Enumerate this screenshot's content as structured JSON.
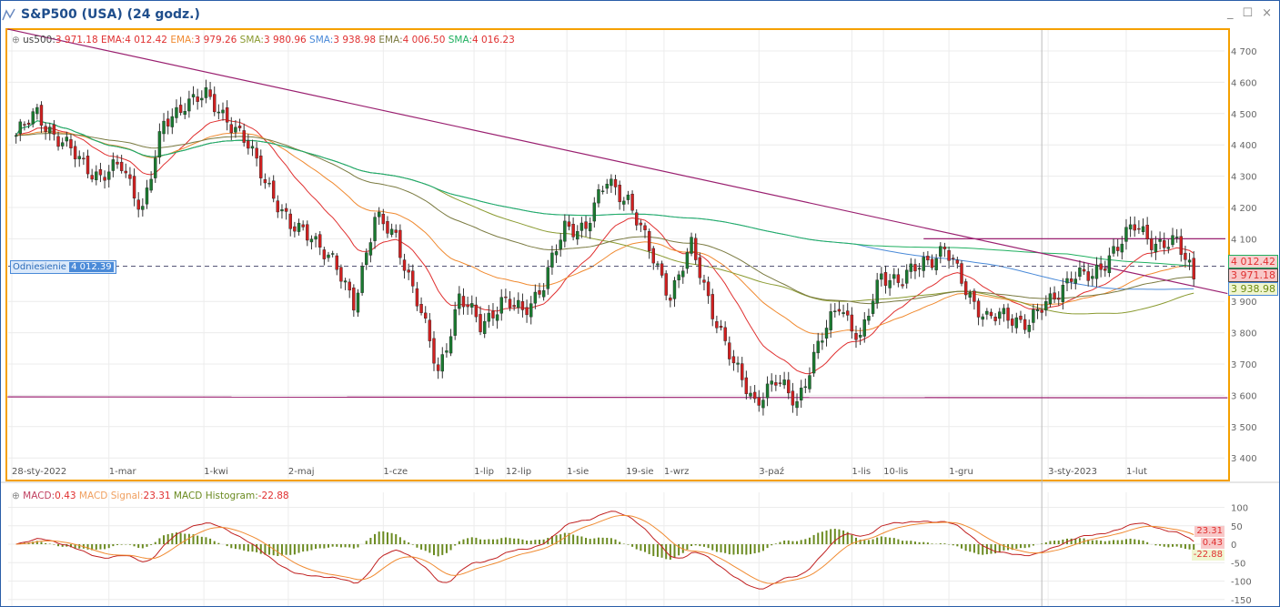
{
  "window": {
    "title": "S&P500 (USA) (24 godz.)",
    "controls": [
      "_",
      "☐",
      "×"
    ]
  },
  "legend": {
    "symbol": "us500:",
    "symbol_value": "3 971.18",
    "items": [
      {
        "label": "EMA:",
        "value": "4 012.42",
        "color": "#e03030"
      },
      {
        "label": "EMA:",
        "value": "3 979.26",
        "color": "#f08a30"
      },
      {
        "label": "SMA:",
        "value": "3 980.96",
        "color": "#8a9a30"
      },
      {
        "label": "SMA:",
        "value": "3 938.98",
        "color": "#4a8ad8"
      },
      {
        "label": "EMA:",
        "value": "4 006.50",
        "color": "#7a7a40"
      },
      {
        "label": "SMA:",
        "value": "4 016.23",
        "color": "#20b060"
      }
    ]
  },
  "reference": {
    "label": "Odniesienie",
    "value": "4 012.39",
    "price": 4012.39
  },
  "price_labels": [
    {
      "text": "4 012.42",
      "price": 4012.42,
      "bg": "#f8d0d0",
      "border": "#20b060",
      "color": "#e03030"
    },
    {
      "text": "3 971.18",
      "price": 3971.18,
      "bg": "#f8c8c8",
      "border": "#444444",
      "color": "#e03030"
    },
    {
      "text": "3 938.98",
      "price": 3938.98,
      "bg": "#f0f5d0",
      "border": "#4a8ad8",
      "color": "#6a8a10"
    }
  ],
  "macd_legend": {
    "macd_label": "MACD:",
    "macd": "0.43",
    "signal_label": "MACD Signal:",
    "signal": "23.31",
    "hist_label": "MACD Histogram:",
    "hist": "-22.88"
  },
  "macd_labels": [
    {
      "text": "23.31",
      "value": 23.31
    },
    {
      "text": "0.43",
      "value": 0.43
    },
    {
      "text": "-22.88",
      "value": -22.88
    }
  ],
  "chart_data": [
    {
      "type": "candlestick",
      "title": "S&P500 (USA) (24 godz.)",
      "weekly_closes": [
        4430,
        4500,
        4420,
        4350,
        4300,
        4330,
        4200,
        4460,
        4540,
        4550,
        4490,
        4390,
        4270,
        4130,
        4120,
        4020,
        3900,
        4160,
        4110,
        3900,
        3675,
        3910,
        3825,
        3900,
        3865,
        3960,
        4130,
        4145,
        4280,
        4230,
        4060,
        3925,
        4070,
        3875,
        3690,
        3585,
        3640,
        3585,
        3750,
        3900,
        3770,
        3990,
        3965,
        4025,
        4070,
        3935,
        3850,
        3845,
        3840,
        3895,
        3990,
        3970,
        4070,
        4135,
        4090,
        4080,
        3971
      ],
      "ylim": [
        3370,
        4730
      ],
      "yticks": [
        {
          "v": 4700,
          "t": "4 700"
        },
        {
          "v": 4600,
          "t": "4 600"
        },
        {
          "v": 4500,
          "t": "4 500"
        },
        {
          "v": 4400,
          "t": "4 400"
        },
        {
          "v": 4300,
          "t": "4 300"
        },
        {
          "v": 4200,
          "t": "4 200"
        },
        {
          "v": 4100,
          "t": "4 100"
        },
        {
          "v": 3900,
          "t": "3 900"
        },
        {
          "v": 3800,
          "t": "3 800"
        },
        {
          "v": 3700,
          "t": "3 700"
        },
        {
          "v": 3600,
          "t": "3 600"
        },
        {
          "v": 3500,
          "t": "3 500"
        },
        {
          "v": 3400,
          "t": "3 400"
        }
      ],
      "xticks": [
        {
          "w": 0,
          "t": "28-sty-2022"
        },
        {
          "w": 4.6,
          "t": "1-mar"
        },
        {
          "w": 9.1,
          "t": "1-kwi"
        },
        {
          "w": 13.1,
          "t": "2-maj"
        },
        {
          "w": 17.6,
          "t": "1-cze"
        },
        {
          "w": 21.9,
          "t": "1-lip"
        },
        {
          "w": 23.4,
          "t": "12-lip"
        },
        {
          "w": 26.3,
          "t": "1-sie"
        },
        {
          "w": 29.1,
          "t": "19-sie"
        },
        {
          "w": 30.9,
          "t": "1-wrz"
        },
        {
          "w": 35.4,
          "t": "3-paź"
        },
        {
          "w": 39.8,
          "t": "1-lis"
        },
        {
          "w": 41.3,
          "t": "10-lis"
        },
        {
          "w": 44.4,
          "t": "1-gru"
        },
        {
          "w": 49.1,
          "t": "3-sty-2023"
        },
        {
          "w": 52.8,
          "t": "1-lut"
        }
      ],
      "indicators": [
        {
          "type": "EMA",
          "period": 20,
          "color": "#e03030"
        },
        {
          "type": "EMA",
          "period": 50,
          "color": "#f08a30"
        },
        {
          "type": "SMA",
          "period": 100,
          "color": "#8a9a30"
        },
        {
          "type": "SMA",
          "period": 200,
          "color": "#4a8ad8"
        },
        {
          "type": "EMA",
          "period": 100,
          "color": "#7a7a40"
        },
        {
          "type": "SMA",
          "period": 250,
          "color": "#20b060"
        }
      ],
      "trendlines": [
        {
          "from": [
            -0.2,
            4770
          ],
          "to": [
            57.6,
            3925
          ],
          "color": "#9a2070"
        },
        {
          "from": [
            -0.2,
            3595
          ],
          "to": [
            57.6,
            3592
          ],
          "color": "#9a2070"
        },
        {
          "from": [
            43.2,
            4100
          ],
          "to": [
            57.5,
            4100
          ],
          "color": "#9a2070"
        }
      ],
      "crosshair_week": 48.8
    },
    {
      "type": "macd",
      "fast": 12,
      "slow": 26,
      "signal": 9,
      "ylim": [
        -160,
        110
      ],
      "yticks": [
        {
          "v": 100,
          "t": "100"
        },
        {
          "v": 50,
          "t": "50"
        },
        {
          "v": 0,
          "t": "0"
        },
        {
          "v": -50,
          "t": "-50"
        },
        {
          "v": -100,
          "t": "-100"
        },
        {
          "v": -150,
          "t": "-150"
        }
      ],
      "colors": {
        "macd": "#c02020",
        "signal": "#f08a30",
        "hist": "#6a8a20"
      }
    }
  ]
}
